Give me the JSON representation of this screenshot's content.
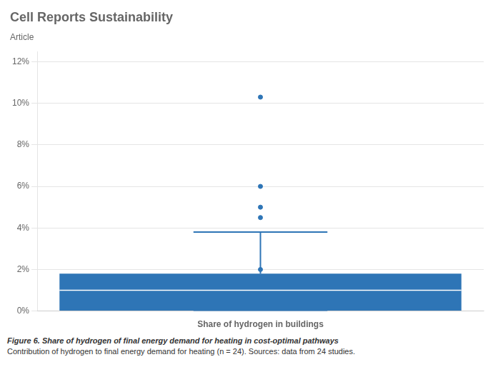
{
  "chart_data": {
    "type": "box",
    "title": "Cell Reports Sustainability",
    "subtitle": "Article",
    "x_label": "Share of hydrogen in buildings",
    "annotations": [
      "Figure 6.  Share of hydrogen of final energy demand for heating in cost-optimal pathways",
      "Contribution of hydrogen to final energy demand for heating (n = 24). Sources: data from 24 studies."
    ],
    "categories": [
      null
    ],
    "whisker_low": [
      0.0
    ],
    "q1": [
      0.0
    ],
    "median": [
      0.01
    ],
    "q3": [
      0.018
    ],
    "whisker_high": [
      0.038
    ],
    "outliers": [
      [
        0.103,
        0.06,
        0.05,
        0.045,
        0.02
      ]
    ],
    "color": "#2E75B6",
    "ylim": [
      0.0,
      0.125
    ],
    "yticks": [
      {
        "value": 0.0,
        "label": "0%"
      },
      {
        "value": 0.02,
        "label": "2%"
      },
      {
        "value": 0.04,
        "label": "4%"
      },
      {
        "value": 0.06,
        "label": "6%"
      },
      {
        "value": 0.08,
        "label": "8%"
      },
      {
        "value": 0.1,
        "label": "10%"
      },
      {
        "value": 0.12,
        "label": "12%"
      }
    ],
    "grid": true,
    "tick_labels": "y"
  }
}
